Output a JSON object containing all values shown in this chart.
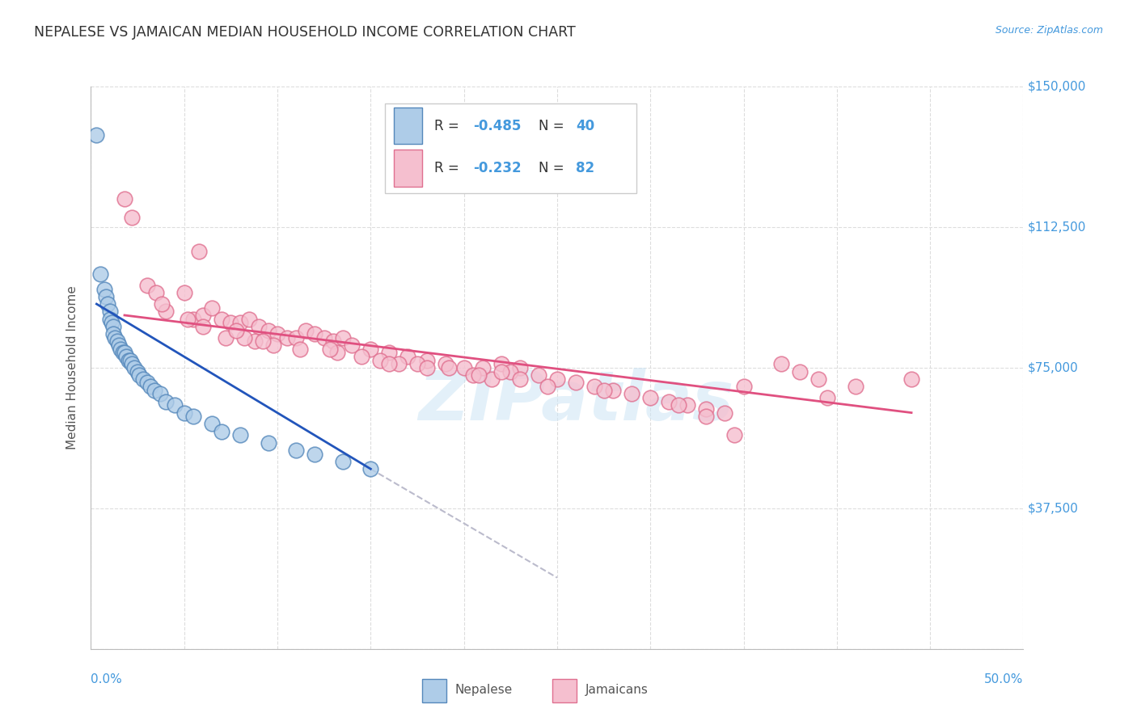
{
  "title": "NEPALESE VS JAMAICAN MEDIAN HOUSEHOLD INCOME CORRELATION CHART",
  "source": "Source: ZipAtlas.com",
  "ylabel": "Median Household Income",
  "yticks": [
    0,
    37500,
    75000,
    112500,
    150000
  ],
  "ytick_labels": [
    "",
    "$37,500",
    "$75,000",
    "$112,500",
    "$150,000"
  ],
  "xlim": [
    0.0,
    50.0
  ],
  "ylim": [
    0,
    150000
  ],
  "watermark_text": "ZIPatlas",
  "background_color": "#ffffff",
  "grid_color": "#dddddd",
  "nepalese_color": "#aecce8",
  "nepalese_edge_color": "#5588bb",
  "jamaican_color": "#f5bfcf",
  "jamaican_edge_color": "#e07090",
  "nepalese_line_color": "#2255bb",
  "jamaican_line_color": "#e05080",
  "dashed_line_color": "#bbbbcc",
  "title_color": "#333333",
  "axis_label_color": "#4499dd",
  "legend_r1": "R = -0.485",
  "legend_n1": "N = 40",
  "legend_r2": "R = -0.232",
  "legend_n2": "N = 82",
  "nepalese_x": [
    0.3,
    0.5,
    0.7,
    0.8,
    0.9,
    1.0,
    1.0,
    1.1,
    1.2,
    1.2,
    1.3,
    1.4,
    1.5,
    1.6,
    1.7,
    1.8,
    1.9,
    2.0,
    2.1,
    2.2,
    2.3,
    2.5,
    2.6,
    2.8,
    3.0,
    3.2,
    3.4,
    3.7,
    4.0,
    4.5,
    5.0,
    5.5,
    6.5,
    7.0,
    8.0,
    9.5,
    11.0,
    12.0,
    13.5,
    15.0
  ],
  "nepalese_y": [
    137000,
    100000,
    96000,
    94000,
    92000,
    90000,
    88000,
    87000,
    86000,
    84000,
    83000,
    82000,
    81000,
    80000,
    79000,
    79000,
    78000,
    77000,
    77000,
    76000,
    75000,
    74000,
    73000,
    72000,
    71000,
    70000,
    69000,
    68000,
    66000,
    65000,
    63000,
    62000,
    60000,
    58000,
    57000,
    55000,
    53000,
    52000,
    50000,
    48000
  ],
  "jamaican_x": [
    1.8,
    2.2,
    3.0,
    3.5,
    4.0,
    5.0,
    5.5,
    6.0,
    6.5,
    7.0,
    7.5,
    8.0,
    8.5,
    9.0,
    9.5,
    10.0,
    10.5,
    11.0,
    11.5,
    12.0,
    12.5,
    13.0,
    13.5,
    14.0,
    15.0,
    16.0,
    17.0,
    18.0,
    19.0,
    20.0,
    21.0,
    22.0,
    23.0,
    24.0,
    25.0,
    26.0,
    27.0,
    28.0,
    29.0,
    30.0,
    31.0,
    32.0,
    33.0,
    34.0,
    35.0,
    37.0,
    38.0,
    39.0,
    41.0,
    44.0,
    3.8,
    5.2,
    7.2,
    8.8,
    9.8,
    11.2,
    13.2,
    16.5,
    21.5,
    22.5,
    6.0,
    14.5,
    15.5,
    17.5,
    24.5,
    20.5,
    22.0,
    19.2,
    9.2,
    8.2,
    12.8,
    7.8,
    27.5,
    31.5,
    20.8,
    16.0,
    34.5,
    23.0,
    33.0,
    39.5,
    5.8,
    18.0
  ],
  "jamaican_y": [
    120000,
    115000,
    97000,
    95000,
    90000,
    95000,
    88000,
    89000,
    91000,
    88000,
    87000,
    87000,
    88000,
    86000,
    85000,
    84000,
    83000,
    83000,
    85000,
    84000,
    83000,
    82000,
    83000,
    81000,
    80000,
    79000,
    78000,
    77000,
    76000,
    75000,
    75000,
    76000,
    75000,
    73000,
    72000,
    71000,
    70000,
    69000,
    68000,
    67000,
    66000,
    65000,
    64000,
    63000,
    70000,
    76000,
    74000,
    72000,
    70000,
    72000,
    92000,
    88000,
    83000,
    82000,
    81000,
    80000,
    79000,
    76000,
    72000,
    74000,
    86000,
    78000,
    77000,
    76000,
    70000,
    73000,
    74000,
    75000,
    82000,
    83000,
    80000,
    85000,
    69000,
    65000,
    73000,
    76000,
    57000,
    72000,
    62000,
    67000,
    106000,
    75000
  ],
  "nep_line_x0": 0.3,
  "nep_line_x1": 15.0,
  "nep_line_y0": 92000,
  "nep_line_y1": 48000,
  "nep_dash_x0": 15.0,
  "nep_dash_x1": 25.0,
  "nep_dash_y0": 48000,
  "nep_dash_y1": 19000,
  "jam_line_x0": 1.8,
  "jam_line_x1": 44.0,
  "jam_line_y0": 89000,
  "jam_line_y1": 63000
}
